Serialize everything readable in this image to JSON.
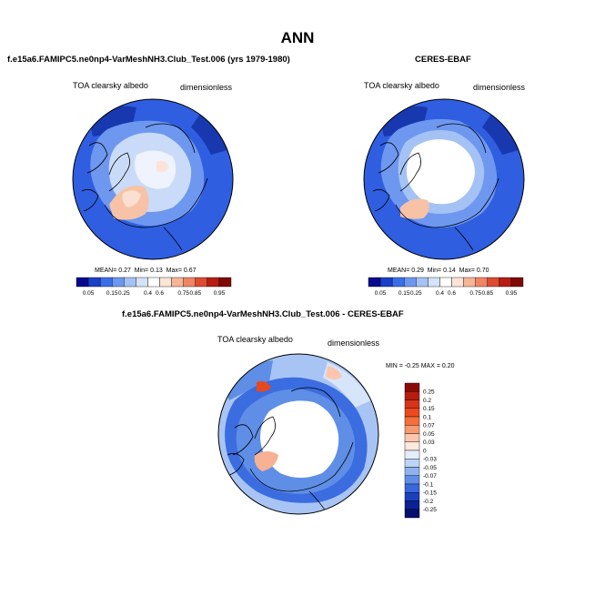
{
  "header": {
    "title": "ANN"
  },
  "panels": [
    {
      "title": "f.e15a6.FAMIPC5.ne0np4-VarMeshNH3.Club_Test.006 (yrs 1979-1980)",
      "variable": "TOA clearsky albedo",
      "units": "dimensionless",
      "stats": {
        "mean_label": "MEAN=",
        "mean": "0.27",
        "min_label": "Min=",
        "min": "0.13",
        "max_label": "Max=",
        "max": "0.67"
      }
    },
    {
      "title": "CERES-EBAF",
      "variable": "TOA clearsky albedo",
      "units": "dimensionless",
      "stats": {
        "mean_label": "MEAN=",
        "mean": "0.29",
        "min_label": "Min=",
        "min": "0.14",
        "max_label": "Max=",
        "max": "0.70"
      }
    },
    {
      "title": "f.e15a6.FAMIPC5.ne0np4-VarMeshNH3.Club_Test.006 - CERES-EBAF",
      "variable": "TOA clearsky albedo",
      "units": "dimensionless",
      "stats_text": "MIN = -0.25 MAX =  0.20"
    }
  ],
  "chart_data": [
    {
      "type": "heatmap",
      "projection": "north-polar-stereographic",
      "colorbar_orientation": "horizontal",
      "levels": [
        "0.05",
        "0.15",
        "0.25",
        "0.4",
        "0.6",
        "0.75",
        "0.85",
        "0.95"
      ],
      "colors": [
        "#08088e",
        "#1a3fc8",
        "#3a6ee8",
        "#6d97ef",
        "#a5c2f4",
        "#d4e3fa",
        "#ffffff",
        "#fde4d6",
        "#f5b596",
        "#ee8565",
        "#dd4b30",
        "#b81c12",
        "#7f0a05"
      ],
      "mean": 0.27,
      "min": 0.13,
      "max": 0.67
    },
    {
      "type": "heatmap",
      "projection": "north-polar-stereographic",
      "colorbar_orientation": "horizontal",
      "levels": [
        "0.05",
        "0.15",
        "0.25",
        "0.4",
        "0.6",
        "0.75",
        "0.85",
        "0.95"
      ],
      "colors": [
        "#08088e",
        "#1a3fc8",
        "#3a6ee8",
        "#6d97ef",
        "#a5c2f4",
        "#d4e3fa",
        "#ffffff",
        "#fde4d6",
        "#f5b596",
        "#ee8565",
        "#dd4b30",
        "#b81c12",
        "#7f0a05"
      ],
      "mean": 0.29,
      "min": 0.14,
      "max": 0.7
    },
    {
      "type": "heatmap",
      "projection": "north-polar-stereographic",
      "colorbar_orientation": "vertical",
      "levels": [
        "0.25",
        "0.2",
        "0.15",
        "0.1",
        "0.07",
        "0.05",
        "0.03",
        "0",
        "-0.03",
        "-0.05",
        "-0.07",
        "-0.1",
        "-0.15",
        "-0.2",
        "-0.25"
      ],
      "colors": [
        "#8b0a05",
        "#b71c0e",
        "#d8341a",
        "#ec4a1e",
        "#f46f3a",
        "#f79a72",
        "#fbc6ad",
        "#fde8dc",
        "#e4eefb",
        "#bdd4f6",
        "#8fb2ef",
        "#5f8ee6",
        "#3768dc",
        "#1a40c0",
        "#0c2196",
        "#050f6c"
      ],
      "min": -0.25,
      "max": 0.2
    }
  ]
}
